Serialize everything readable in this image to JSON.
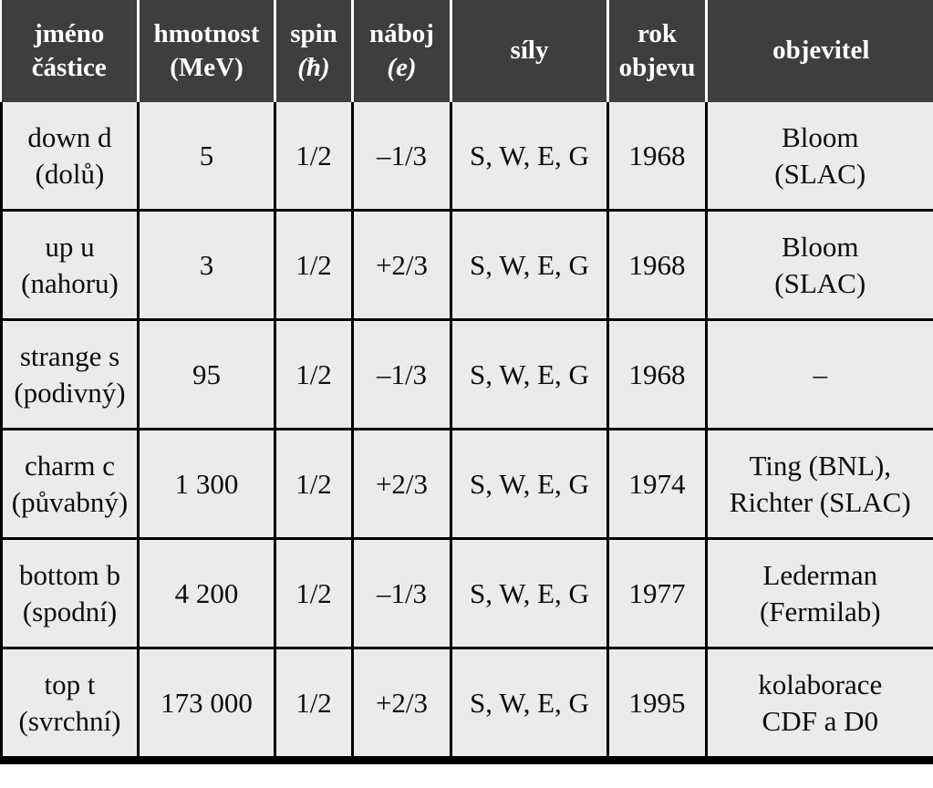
{
  "colors": {
    "header_bg": "#3e3e3e",
    "header_text": "#ffffff",
    "body_bg": "#ebebeb",
    "body_text": "#0d0d0d",
    "grid_line": "#000000",
    "header_divider": "#ffffff"
  },
  "table": {
    "header": {
      "name1": "jméno",
      "name2": "částice",
      "mass1": "hmotnost",
      "mass2": "(MeV)",
      "spin1": "spin",
      "spin2": "(ħ)",
      "charge1": "náboj",
      "charge2": "(e)",
      "forces": "síly",
      "year1": "rok",
      "year2": "objevu",
      "discoverer": "objevitel"
    },
    "rows": [
      {
        "name1": "down d",
        "name2": "(dolů)",
        "mass": "5",
        "spin": "1/2",
        "charge": "–1/3",
        "forces": "S, W, E, G",
        "year": "1968",
        "disc1": "Bloom",
        "disc2": "(SLAC)"
      },
      {
        "name1": "up u",
        "name2": "(nahoru)",
        "mass": "3",
        "spin": "1/2",
        "charge": "+2/3",
        "forces": "S, W, E, G",
        "year": "1968",
        "disc1": "Bloom",
        "disc2": "(SLAC)"
      },
      {
        "name1": "strange s",
        "name2": "(podivný)",
        "mass": "95",
        "spin": "1/2",
        "charge": "–1/3",
        "forces": "S, W, E, G",
        "year": "1968",
        "disc1": "–",
        "disc2": ""
      },
      {
        "name1": "charm c",
        "name2": "(půvabný)",
        "mass": "1 300",
        "spin": "1/2",
        "charge": "+2/3",
        "forces": "S, W, E, G",
        "year": "1974",
        "disc1": "Ting (BNL),",
        "disc2": "Richter (SLAC)"
      },
      {
        "name1": "bottom b",
        "name2": "(spodní)",
        "mass": "4 200",
        "spin": "1/2",
        "charge": "–1/3",
        "forces": "S, W, E, G",
        "year": "1977",
        "disc1": "Lederman",
        "disc2": "(Fermilab)"
      },
      {
        "name1": "top t",
        "name2": "(svrchní)",
        "mass": "173 000",
        "spin": "1/2",
        "charge": "+2/3",
        "forces": "S, W, E, G",
        "year": "1995",
        "disc1": "kolaborace",
        "disc2": "CDF a D0"
      }
    ]
  },
  "chart_data": {
    "type": "table",
    "title": "",
    "columns": [
      "jméno částice",
      "hmotnost (MeV)",
      "spin (ħ)",
      "náboj (e)",
      "síly",
      "rok objevu",
      "objevitel"
    ],
    "rows": [
      [
        "down d (dolů)",
        "5",
        "1/2",
        "–1/3",
        "S, W, E, G",
        "1968",
        "Bloom (SLAC)"
      ],
      [
        "up u (nahoru)",
        "3",
        "1/2",
        "+2/3",
        "S, W, E, G",
        "1968",
        "Bloom (SLAC)"
      ],
      [
        "strange s (podivný)",
        "95",
        "1/2",
        "–1/3",
        "S, W, E, G",
        "1968",
        "–"
      ],
      [
        "charm c (půvabný)",
        "1 300",
        "1/2",
        "+2/3",
        "S, W, E, G",
        "1974",
        "Ting (BNL), Richter (SLAC)"
      ],
      [
        "bottom b (spodní)",
        "4 200",
        "1/2",
        "–1/3",
        "S, W, E, G",
        "1977",
        "Lederman (Fermilab)"
      ],
      [
        "top t (svrchní)",
        "173 000",
        "1/2",
        "+2/3",
        "S, W, E, G",
        "1995",
        "kolaborace CDF a D0"
      ]
    ]
  }
}
